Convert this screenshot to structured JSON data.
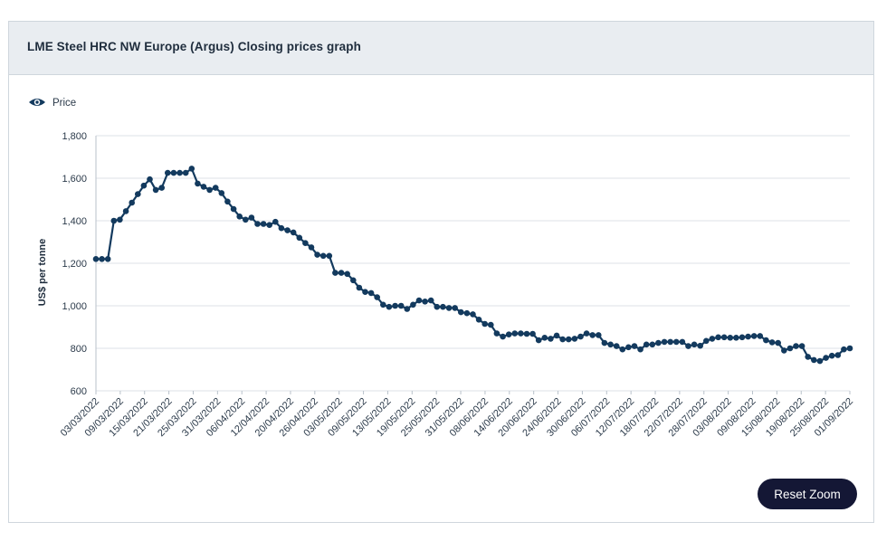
{
  "card": {
    "title": "LME Steel HRC NW Europe (Argus) Closing prices graph",
    "reset_zoom_label": "Reset Zoom"
  },
  "colors": {
    "series": "#133a5e",
    "grid": "#dde2e7",
    "button_bg": "#141735"
  },
  "chart_data": {
    "type": "line",
    "title": "LME Steel HRC NW Europe (Argus) Closing prices graph",
    "ylabel": "US$ per tonne",
    "xlabel": "",
    "ylim": [
      600,
      1800
    ],
    "yticks": [
      600,
      800,
      1000,
      1200,
      1400,
      1600,
      1800
    ],
    "ytick_labels": [
      "600",
      "800",
      "1,000",
      "1,200",
      "1,400",
      "1,600",
      "1,800"
    ],
    "xtick_labels": [
      "03/03/2022",
      "09/03/2022",
      "15/03/2022",
      "21/03/2022",
      "25/03/2022",
      "31/03/2022",
      "06/04/2022",
      "12/04/2022",
      "20/04/2022",
      "26/04/2022",
      "03/05/2022",
      "09/05/2022",
      "13/05/2022",
      "19/05/2022",
      "25/05/2022",
      "31/05/2022",
      "08/06/2022",
      "14/06/2022",
      "20/06/2022",
      "24/06/2022",
      "30/06/2022",
      "06/07/2022",
      "12/07/2022",
      "18/07/2022",
      "22/07/2022",
      "28/07/2022",
      "03/08/2022",
      "09/08/2022",
      "15/08/2022",
      "19/08/2022",
      "25/08/2022",
      "01/09/2022"
    ],
    "legend": [
      "Price"
    ],
    "legend_position": "top-left",
    "grid": true,
    "series": [
      {
        "name": "Price",
        "values": [
          1220,
          1220,
          1220,
          1400,
          1405,
          1445,
          1485,
          1525,
          1565,
          1595,
          1545,
          1555,
          1625,
          1625,
          1625,
          1625,
          1645,
          1575,
          1560,
          1545,
          1555,
          1530,
          1490,
          1455,
          1420,
          1405,
          1415,
          1385,
          1385,
          1380,
          1395,
          1365,
          1355,
          1345,
          1320,
          1295,
          1275,
          1240,
          1235,
          1235,
          1155,
          1155,
          1150,
          1120,
          1085,
          1065,
          1060,
          1040,
          1005,
          995,
          1000,
          1000,
          985,
          1005,
          1025,
          1020,
          1025,
          995,
          995,
          990,
          990,
          970,
          965,
          960,
          935,
          915,
          910,
          870,
          855,
          865,
          870,
          870,
          868,
          868,
          838,
          850,
          845,
          860,
          842,
          842,
          845,
          855,
          870,
          862,
          862,
          825,
          818,
          810,
          795,
          805,
          810,
          795,
          818,
          818,
          825,
          830,
          830,
          830,
          830,
          810,
          818,
          812,
          835,
          845,
          852,
          852,
          850,
          850,
          852,
          855,
          858,
          858,
          838,
          828,
          825,
          790,
          800,
          810,
          810,
          760,
          745,
          740,
          755,
          765,
          768,
          795,
          800
        ]
      }
    ]
  }
}
